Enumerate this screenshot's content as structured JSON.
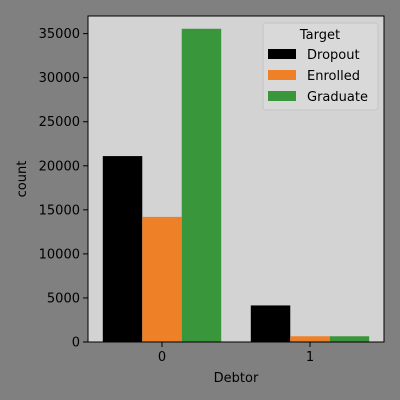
{
  "colors": {
    "figure_background": "#808080",
    "plot_background": "#d3d3d3",
    "axis": "#000000",
    "legend_background": "#d9d9d9"
  },
  "chart_data": {
    "type": "bar",
    "title": "",
    "xlabel": "Debtor",
    "ylabel": "count",
    "categories": [
      "0",
      "1"
    ],
    "ylim": [
      0,
      37000
    ],
    "yticks": [
      0,
      5000,
      10000,
      15000,
      20000,
      25000,
      30000,
      35000
    ],
    "grid": false,
    "legend": {
      "title": "Target",
      "placement": "top-right"
    },
    "series": [
      {
        "name": "Dropout",
        "color": "#000000",
        "values": [
          21100,
          4150
        ]
      },
      {
        "name": "Enrolled",
        "color": "#ee8128",
        "values": [
          14200,
          650
        ]
      },
      {
        "name": "Graduate",
        "color": "#3a963a",
        "values": [
          35550,
          650
        ]
      }
    ]
  }
}
